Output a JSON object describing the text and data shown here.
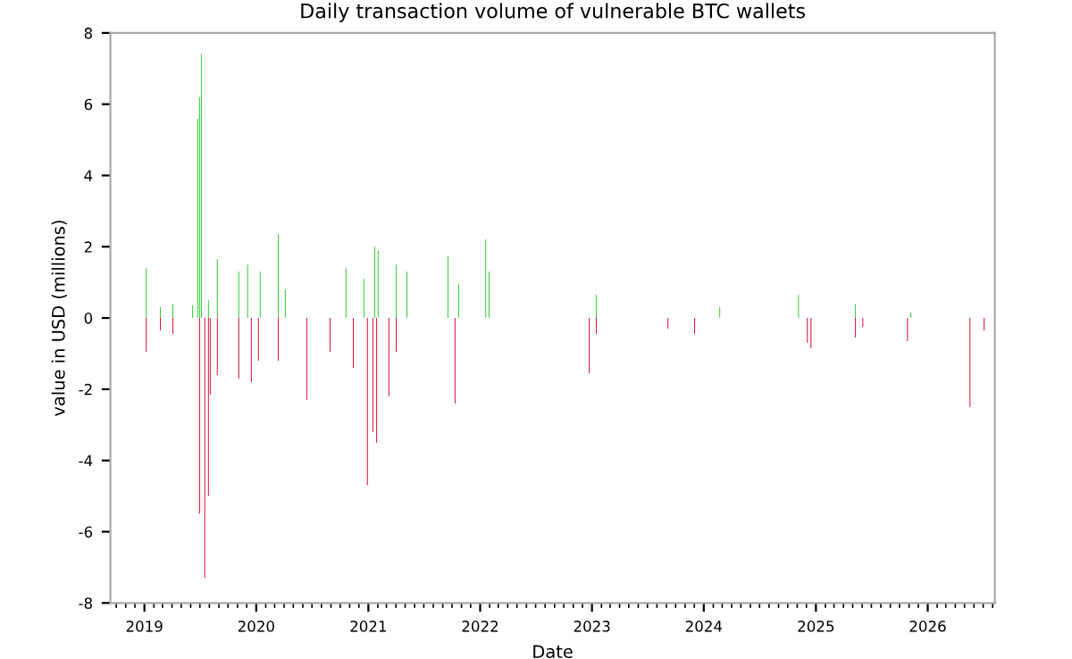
{
  "chart_data": {
    "type": "bar",
    "title": "Daily transaction volume of vulnerable BTC wallets",
    "xlabel": "Date",
    "ylabel": "value in USD (millions)",
    "series": [
      {
        "color": "#3ccc3c",
        "x": [
          "2019-01-07",
          "2019-02-22",
          "2019-04-04",
          "2019-06-07",
          "2019-06-24",
          "2019-06-30",
          "2019-07-06",
          "2019-07-29",
          "2019-08-27",
          "2019-11-05",
          "2019-12-04",
          "2020-01-14",
          "2020-03-13",
          "2020-04-05",
          "2020-10-20",
          "2020-12-18",
          "2021-01-22",
          "2021-02-02",
          "2021-04-02",
          "2021-05-07",
          "2021-09-18",
          "2021-10-23",
          "2022-01-19",
          "2022-01-30",
          "2023-01-15",
          "2024-02-22",
          "2024-11-05",
          "2025-05-10",
          "2025-11-07"
        ],
        "values": [
          1.4,
          0.3,
          0.4,
          0.35,
          5.6,
          6.2,
          7.4,
          0.5,
          1.65,
          1.3,
          1.5,
          1.3,
          2.35,
          0.8,
          1.4,
          1.1,
          2.0,
          1.9,
          1.5,
          1.3,
          1.75,
          0.95,
          2.2,
          1.3,
          0.65,
          0.3,
          0.65,
          0.4,
          0.15
        ]
      },
      {
        "color": "#dc143c",
        "x": [
          "2019-01-07",
          "2019-02-22",
          "2019-04-04",
          "2019-06-30",
          "2019-07-17",
          "2019-07-29",
          "2019-08-04",
          "2019-08-27",
          "2019-11-05",
          "2019-12-16",
          "2020-01-08",
          "2020-03-13",
          "2020-06-14",
          "2020-08-29",
          "2020-11-13",
          "2020-12-29",
          "2021-01-16",
          "2021-01-28",
          "2021-03-09",
          "2021-04-02",
          "2021-10-11",
          "2022-12-23",
          "2023-01-15",
          "2023-09-06",
          "2023-12-02",
          "2024-12-04",
          "2024-12-16",
          "2025-05-10",
          "2025-06-03",
          "2025-10-27",
          "2026-05-19",
          "2026-07-04"
        ],
        "values": [
          -0.95,
          -0.35,
          -0.45,
          -5.5,
          -7.3,
          -5.0,
          -2.15,
          -1.6,
          -1.7,
          -1.8,
          -1.2,
          -1.2,
          -2.3,
          -0.95,
          -1.4,
          -4.7,
          -3.2,
          -3.5,
          -2.2,
          -0.95,
          -2.4,
          -1.55,
          -0.45,
          -0.3,
          -0.45,
          -0.7,
          -0.85,
          -0.55,
          -0.25,
          -0.65,
          -2.5,
          -0.35
        ]
      }
    ],
    "xlim": [
      "2018-09-12",
      "2026-08-08"
    ],
    "xticks": [
      {
        "value": "2019-01-01",
        "label": "2019"
      },
      {
        "value": "2020-01-01",
        "label": "2020"
      },
      {
        "value": "2021-01-01",
        "label": "2021"
      },
      {
        "value": "2022-01-01",
        "label": "2022"
      },
      {
        "value": "2023-01-01",
        "label": "2023"
      },
      {
        "value": "2024-01-01",
        "label": "2024"
      },
      {
        "value": "2025-01-01",
        "label": "2025"
      },
      {
        "value": "2026-01-01",
        "label": "2026"
      }
    ],
    "ylim": [
      -8,
      8
    ],
    "yticks": [
      -8,
      -6,
      -4,
      -2,
      0,
      2,
      4,
      6,
      8
    ],
    "grid": false,
    "legend": false
  }
}
